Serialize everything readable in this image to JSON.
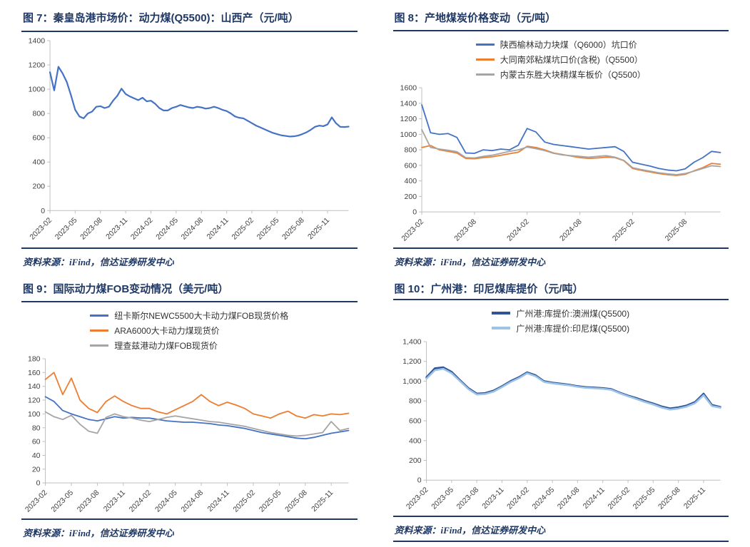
{
  "page": {
    "background": "#FFFFFF",
    "accent_color": "#1F3864",
    "axis_color": "#BFBFBF",
    "label_color": "#404040"
  },
  "chart_data": [
    {
      "type": "line",
      "title": "图 7：秦皇岛港市场价：动力煤(Q5500)：山西产（元/吨）",
      "source": "资料来源：iFind，信达证券研发中心",
      "ylabel": "",
      "xlabel": "",
      "ylim": [
        0,
        1400
      ],
      "ytick_labels": [
        "0",
        "200",
        "400",
        "600",
        "800",
        "1000",
        "1200",
        "1400"
      ],
      "x_tick_indices": [
        0,
        6,
        12,
        18,
        24,
        30,
        36,
        42,
        48,
        54,
        60,
        66
      ],
      "x_tick_labels": [
        "2023-02",
        "2023-05",
        "2023-08",
        "2023-11",
        "2024-02",
        "2024-05",
        "2024-08",
        "2024-11",
        "2025-02",
        "2025-05",
        "2025-08",
        "2025-11"
      ],
      "legend_position": "none",
      "grid": false,
      "series": [
        {
          "name": "秦皇岛港市场价:动力煤(Q5500):山西产",
          "color": "#4472C4",
          "width": 2.2,
          "values": [
            1140,
            990,
            1185,
            1130,
            1060,
            950,
            830,
            775,
            760,
            800,
            815,
            855,
            860,
            845,
            855,
            905,
            945,
            1005,
            960,
            940,
            925,
            910,
            930,
            900,
            905,
            880,
            845,
            825,
            825,
            845,
            855,
            870,
            860,
            850,
            845,
            855,
            850,
            840,
            845,
            855,
            845,
            830,
            820,
            800,
            775,
            765,
            760,
            740,
            720,
            700,
            685,
            670,
            655,
            640,
            630,
            620,
            615,
            610,
            612,
            618,
            630,
            645,
            665,
            690,
            700,
            695,
            710,
            768,
            720,
            690,
            688,
            692
          ]
        }
      ]
    },
    {
      "type": "line",
      "title": "图 8：产地煤炭价格变动（元/吨）",
      "source": "资料来源：iFind，信达证券研发中心",
      "ylabel": "",
      "xlabel": "",
      "ylim": [
        0,
        1600
      ],
      "ytick_labels": [
        "0",
        "200",
        "400",
        "600",
        "800",
        "1000",
        "1200",
        "1400",
        "1600"
      ],
      "x_tick_indices": [
        0,
        6,
        12,
        18,
        24,
        30
      ],
      "x_tick_labels": [
        "2023-02",
        "2023-08",
        "2024-02",
        "2024-08",
        "2025-02",
        "2025-08"
      ],
      "legend_position": "top",
      "grid": false,
      "series": [
        {
          "name": "陕西榆林动力块煤（Q6000）坑口价",
          "color": "#4472C4",
          "width": 1.8,
          "values": [
            1380,
            1020,
            1000,
            1010,
            960,
            760,
            755,
            800,
            790,
            810,
            800,
            860,
            1075,
            1030,
            900,
            870,
            855,
            840,
            825,
            810,
            820,
            830,
            840,
            780,
            640,
            615,
            590,
            560,
            540,
            530,
            555,
            640,
            700,
            780,
            765
          ]
        },
        {
          "name": "大同南郊粘煤坑口价(含税)（Q5500）",
          "color": "#ED7D31",
          "width": 1.8,
          "values": [
            830,
            855,
            800,
            780,
            760,
            690,
            685,
            700,
            710,
            730,
            750,
            770,
            845,
            830,
            800,
            760,
            740,
            720,
            700,
            690,
            695,
            705,
            700,
            660,
            560,
            535,
            515,
            495,
            480,
            470,
            485,
            530,
            570,
            625,
            615
          ]
        },
        {
          "name": "内蒙古东胜大块精煤车板价（Q5500）",
          "color": "#A5A5A5",
          "width": 1.8,
          "values": [
            1060,
            830,
            810,
            795,
            775,
            700,
            695,
            715,
            730,
            755,
            780,
            800,
            835,
            815,
            790,
            755,
            735,
            725,
            715,
            705,
            715,
            725,
            705,
            665,
            570,
            545,
            525,
            505,
            490,
            480,
            495,
            525,
            560,
            595,
            585
          ]
        }
      ]
    },
    {
      "type": "line",
      "title": "图 9：国际动力煤FOB变动情况（美元/吨）",
      "source": "资料来源：iFind，信达证券研发中心",
      "ylabel": "",
      "xlabel": "",
      "ylim": [
        0,
        180
      ],
      "ytick_labels": [
        "0",
        "20",
        "40",
        "60",
        "80",
        "100",
        "120",
        "140",
        "160",
        "180"
      ],
      "x_tick_indices": [
        0,
        3,
        6,
        9,
        12,
        15,
        18,
        21,
        24,
        27,
        30,
        33
      ],
      "x_tick_labels": [
        "2023-02",
        "2023-05",
        "2023-08",
        "2023-11",
        "2024-02",
        "2024-05",
        "2024-08",
        "2024-11",
        "2025-02",
        "2025-05",
        "2025-08",
        "2025-11"
      ],
      "legend_position": "top",
      "grid": false,
      "series": [
        {
          "name": "纽卡斯尔NEWC5500大卡动力煤FOB现货价格",
          "color": "#4472C4",
          "width": 1.8,
          "values": [
            125,
            118,
            105,
            100,
            96,
            92,
            90,
            93,
            96,
            94,
            95,
            94,
            94,
            92,
            90,
            89,
            88,
            88,
            87,
            86,
            84,
            83,
            81,
            79,
            76,
            73,
            71,
            69,
            67,
            65,
            64,
            66,
            69,
            72,
            74,
            76
          ]
        },
        {
          "name": "ARA6000大卡动力煤现货价",
          "color": "#ED7D31",
          "width": 1.8,
          "values": [
            150,
            160,
            128,
            152,
            120,
            108,
            102,
            118,
            126,
            118,
            112,
            108,
            108,
            103,
            100,
            106,
            112,
            118,
            128,
            118,
            112,
            117,
            113,
            108,
            100,
            97,
            94,
            100,
            104,
            97,
            94,
            99,
            97,
            100,
            99,
            101
          ]
        },
        {
          "name": "理查兹港动力煤FOB现货价",
          "color": "#A5A5A5",
          "width": 1.8,
          "values": [
            103,
            96,
            92,
            98,
            85,
            75,
            72,
            95,
            100,
            96,
            94,
            91,
            89,
            92,
            95,
            97,
            95,
            93,
            91,
            89,
            88,
            86,
            84,
            82,
            79,
            76,
            73,
            71,
            69,
            68,
            69,
            71,
            73,
            89,
            76,
            79
          ]
        }
      ]
    },
    {
      "type": "line",
      "title": "图 10：广州港：印尼煤库提价（元/吨）",
      "source": "资料来源：iFind，信达证券研发中心",
      "ylabel": "",
      "xlabel": "",
      "ylim": [
        0,
        1400
      ],
      "ytick_labels": [
        "0",
        "200",
        "400",
        "600",
        "800",
        "1,000",
        "1,200",
        "1,400"
      ],
      "x_tick_indices": [
        0,
        3,
        6,
        9,
        12,
        15,
        18,
        21,
        24,
        27,
        30,
        33
      ],
      "x_tick_labels": [
        "2023-02",
        "2023-05",
        "2023-08",
        "2023-11",
        "2024-02",
        "2024-05",
        "2024-08",
        "2024-11",
        "2025-02",
        "2025-05",
        "2025-08",
        "2025-11"
      ],
      "legend_position": "top",
      "grid": false,
      "series": [
        {
          "name": "广州港:库提价:澳洲煤(Q5500)",
          "color": "#2F5597",
          "width": 2.6,
          "values": [
            1040,
            1130,
            1140,
            1095,
            1010,
            930,
            875,
            880,
            905,
            950,
            1000,
            1040,
            1090,
            1060,
            1000,
            985,
            975,
            965,
            950,
            940,
            935,
            930,
            920,
            885,
            855,
            830,
            800,
            775,
            745,
            725,
            735,
            755,
            790,
            875,
            760,
            740
          ]
        },
        {
          "name": "广州港:库提价:印尼煤(Q5500)",
          "color": "#9DC3E6",
          "width": 2.6,
          "values": [
            1025,
            1110,
            1125,
            1080,
            1000,
            920,
            865,
            870,
            895,
            940,
            990,
            1030,
            1080,
            1050,
            992,
            978,
            968,
            958,
            943,
            933,
            928,
            923,
            913,
            878,
            848,
            820,
            790,
            765,
            733,
            713,
            723,
            743,
            778,
            858,
            748,
            732
          ]
        }
      ]
    }
  ]
}
